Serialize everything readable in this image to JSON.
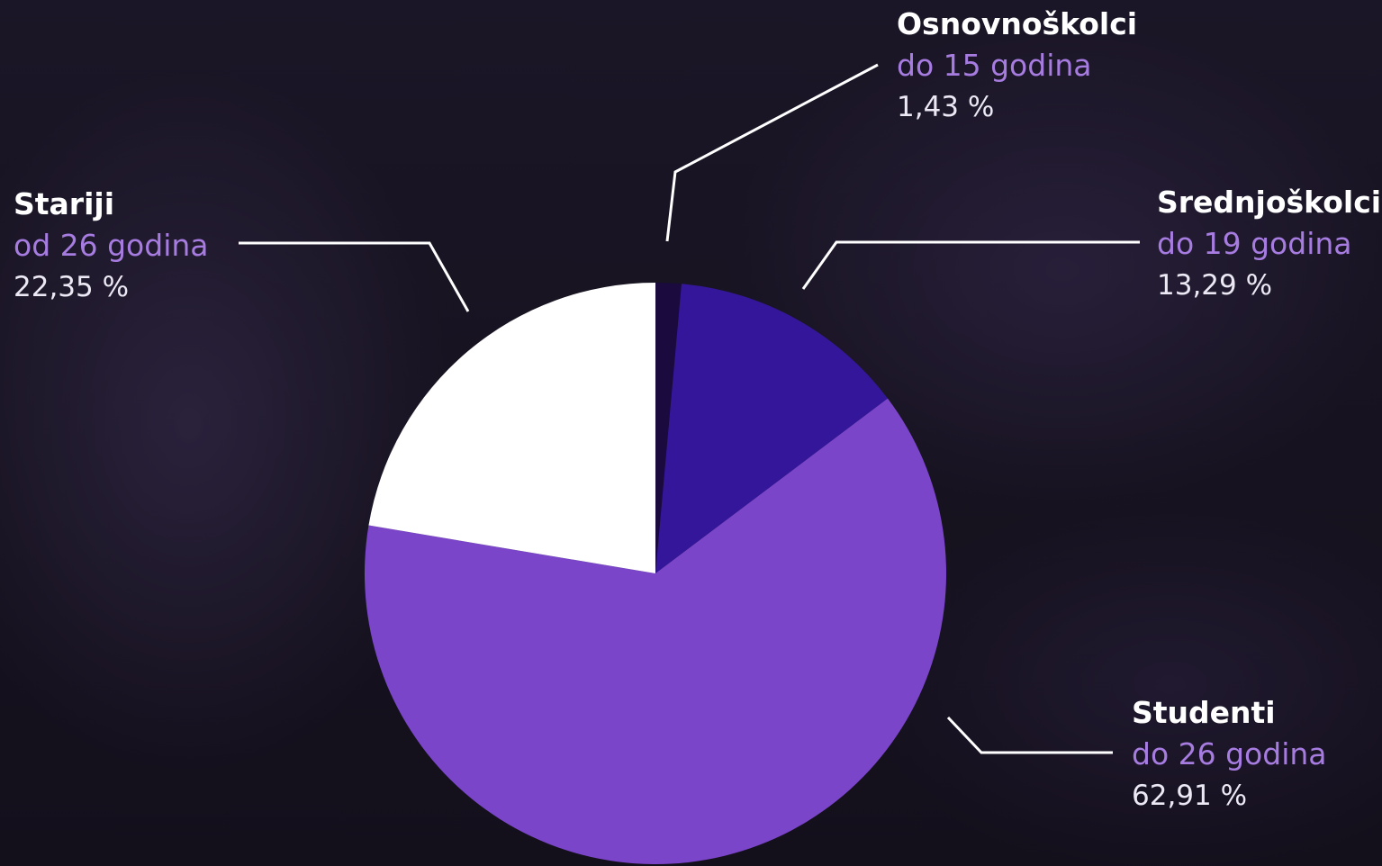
{
  "chart_data": {
    "type": "pie",
    "slices": [
      {
        "key": "osnovnoskolci",
        "name": "Osnovnoškolci",
        "range": "do 15 godina",
        "value": 1.43,
        "value_label": "1,43 %",
        "color": "#1a0a3d"
      },
      {
        "key": "srednjoskolci",
        "name": "Srednjoškolci",
        "range": "do 19 godina",
        "value": 13.29,
        "value_label": "13,29 %",
        "color": "#34169a"
      },
      {
        "key": "studenti",
        "name": "Studenti",
        "range": "do 26 godina",
        "value": 62.91,
        "value_label": "62,91 %",
        "color": "#7b45c9"
      },
      {
        "key": "stariji",
        "name": "Stariji",
        "range": "od 26 godina",
        "value": 22.35,
        "value_label": "22,35 %",
        "color": "#ffffff"
      }
    ],
    "start_angle": "12 o'clock",
    "direction": "clockwise",
    "legend": "none"
  }
}
